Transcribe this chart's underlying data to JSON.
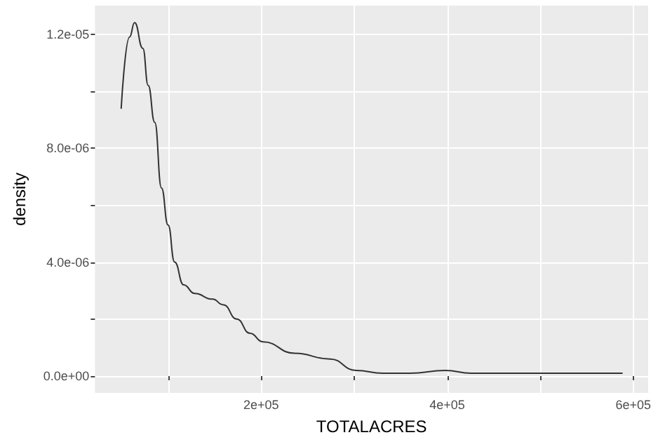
{
  "chart_data": {
    "type": "line",
    "xlabel": "TOTALACRES",
    "ylabel": "density",
    "color": "#333333",
    "x": [
      49600,
      58600,
      64000,
      72900,
      78600,
      85700,
      92900,
      100000,
      107000,
      116700,
      128600,
      147600,
      159500,
      173800,
      188000,
      202000,
      236000,
      274000,
      302000,
      331000,
      360000,
      398000,
      426000,
      479000,
      545000,
      588000
    ],
    "values": [
      9.4e-06,
      1.19e-05,
      1.24e-05,
      1.15e-05,
      1.02e-05,
      8.9e-06,
      6.6e-06,
      5.3e-06,
      4e-06,
      3.2e-06,
      2.9e-06,
      2.7e-06,
      2.5e-06,
      2e-06,
      1.5e-06,
      1.2e-06,
      8e-07,
      6e-07,
      2e-07,
      1e-07,
      1e-07,
      2e-07,
      1e-07,
      1e-07,
      1e-07,
      1e-07
    ],
    "xlim": [
      21400,
      616000
    ],
    "xticks": [
      {
        "value": 100000,
        "label": null
      },
      {
        "value": 200000,
        "label": "2e+05"
      },
      {
        "value": 300000,
        "label": null
      },
      {
        "value": 400000,
        "label": "4e+05"
      },
      {
        "value": 500000,
        "label": null
      },
      {
        "value": 600000,
        "label": "6e+05"
      }
    ],
    "ylim": [
      -5.9e-07,
      1.3e-05
    ],
    "yticks": [
      {
        "value": 0,
        "label": "0.0e+00"
      },
      {
        "value": 2e-06,
        "label": null
      },
      {
        "value": 4e-06,
        "label": "4.0e-06"
      },
      {
        "value": 6e-06,
        "label": null
      },
      {
        "value": 8e-06,
        "label": "8.0e-06"
      },
      {
        "value": 1e-05,
        "label": null
      },
      {
        "value": 1.2e-05,
        "label": "1.2e-05"
      }
    ],
    "grid": true,
    "marker": "none",
    "line_style": "solid"
  }
}
